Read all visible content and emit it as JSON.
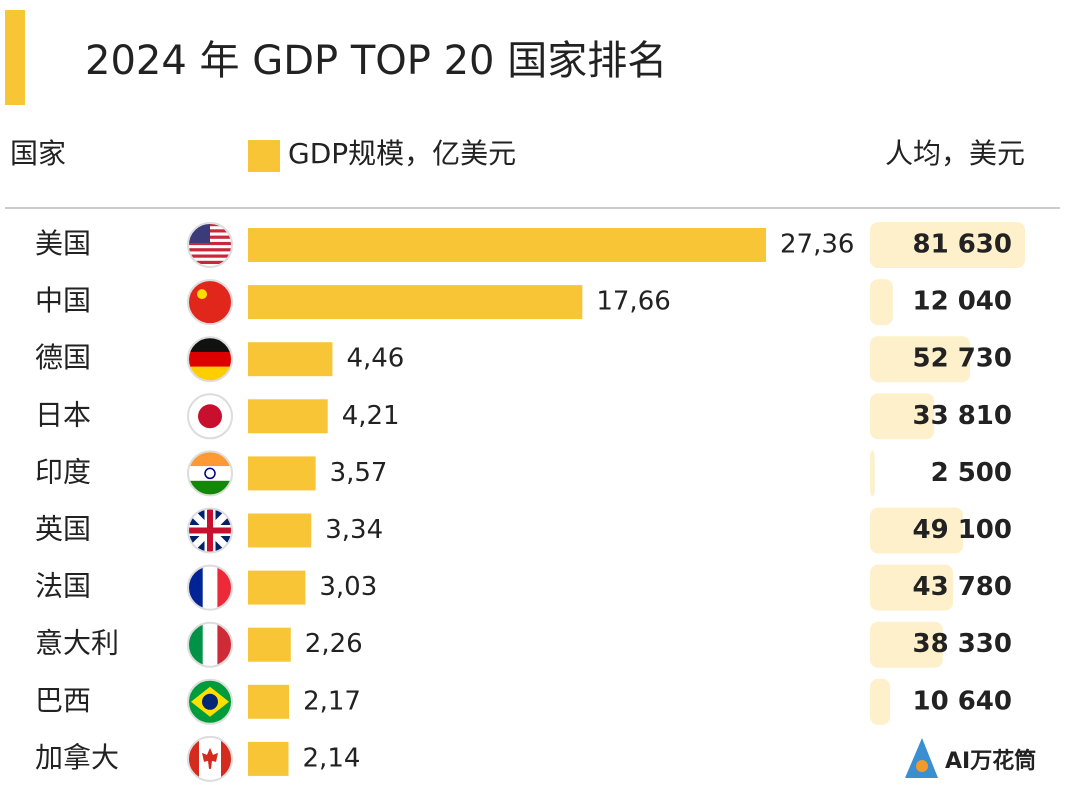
{
  "chart_data": {
    "type": "bar",
    "title": "2024 年 GDP TOP 20 国家排名",
    "category_label": "国家",
    "categories": [
      "美国",
      "中国",
      "德国",
      "日本",
      "印度",
      "英国",
      "法国",
      "意大利",
      "巴西",
      "加拿大"
    ],
    "series": [
      {
        "name": "GDP规模，亿美元",
        "color": "#f8c537",
        "values": [
          27.36,
          17.66,
          4.46,
          4.21,
          3.57,
          3.34,
          3.03,
          2.26,
          2.17,
          2.14
        ],
        "value_labels": [
          "27,36",
          "17,66",
          "4,46",
          "4,21",
          "3,57",
          "3,34",
          "3,03",
          "2,26",
          "2,17",
          "2,14"
        ]
      },
      {
        "name": "人均，美元",
        "color": "#fdf0cb",
        "values": [
          81630,
          12040,
          52730,
          33810,
          2500,
          49100,
          43780,
          38330,
          10640,
          0
        ],
        "value_labels": [
          "81 630",
          "12 040",
          "52 730",
          "33 810",
          "2 500",
          "49 100",
          "43 780",
          "38 330",
          "10 640",
          ""
        ]
      }
    ]
  },
  "logo": "AI万花筒"
}
